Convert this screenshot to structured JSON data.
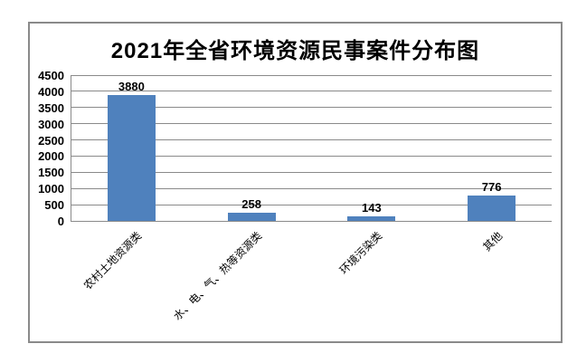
{
  "chart": {
    "frame_border_color": "#8a8a8a",
    "gridline_color": "#8a8a8a",
    "text_color": "#000000"
  },
  "chart_data": {
    "type": "bar",
    "title": "2021年全省环境资源民事案件分布图",
    "categories": [
      "农村土地资源类",
      "水、电、气、热等资源类",
      "环境污染类",
      "其他"
    ],
    "values": [
      3880,
      258,
      143,
      776
    ],
    "data_labels": [
      "3880",
      "258",
      "143",
      "776"
    ],
    "xlabel": "",
    "ylabel": "",
    "ylim": [
      0,
      4500
    ],
    "yticks": [
      4500,
      4000,
      3500,
      3000,
      2500,
      2000,
      1500,
      1000,
      500,
      0
    ],
    "grid": true,
    "legend": false,
    "bar_color": "#4F81BD",
    "x_tick_label_rotation_deg": 45
  }
}
